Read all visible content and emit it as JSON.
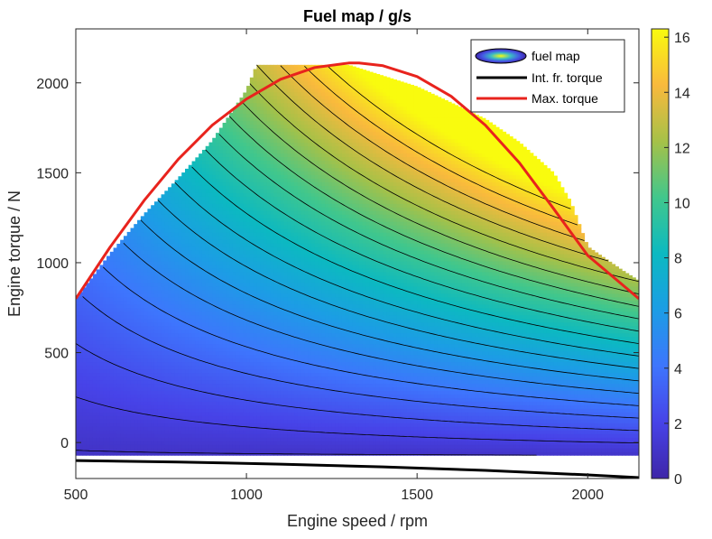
{
  "chart_data": {
    "type": "contour",
    "title": "Fuel map / g/s",
    "xlabel": "Engine speed / rpm",
    "ylabel": "Engine torque / N",
    "xlim": [
      500,
      2150
    ],
    "ylim": [
      -200,
      2300
    ],
    "x_ticks": [
      "500",
      "1000",
      "1500",
      "2000"
    ],
    "y_ticks": [
      "0",
      "500",
      "1000",
      "1500",
      "2000"
    ],
    "colorbar": {
      "range": [
        0,
        16.3
      ],
      "ticks": [
        "0",
        "2",
        "4",
        "6",
        "8",
        "10",
        "12",
        "14",
        "16"
      ],
      "colormap": "parula"
    },
    "legend_position": "top-right",
    "legend": [
      "fuel map",
      "Int. fr. torque",
      "Max. torque"
    ],
    "series": [
      {
        "name": "Max. torque",
        "color": "#e8231d",
        "x": [
          500,
          600,
          700,
          800,
          900,
          1000,
          1100,
          1200,
          1300,
          1330,
          1400,
          1500,
          1600,
          1700,
          1800,
          1900,
          2000,
          2100,
          2150
        ],
        "y": [
          800,
          1085,
          1345,
          1575,
          1765,
          1910,
          2020,
          2085,
          2110,
          2110,
          2095,
          2035,
          1925,
          1765,
          1555,
          1300,
          1040,
          880,
          800
        ]
      },
      {
        "name": "Int. fr. torque",
        "color": "#000000",
        "x": [
          500,
          800,
          1100,
          1400,
          1700,
          2000,
          2150
        ],
        "y": [
          -100,
          -108,
          -120,
          -135,
          -155,
          -180,
          -195
        ]
      }
    ],
    "map_boundary": {
      "speed": [
        500,
        600,
        700,
        800,
        900,
        1000,
        1030,
        1100,
        1200,
        1300,
        1400,
        1500,
        1600,
        1700,
        1800,
        1900,
        1950,
        2000,
        2100,
        2150
      ],
      "torque_max": [
        800,
        1050,
        1270,
        1470,
        1680,
        1960,
        2100,
        2100,
        2100,
        2100,
        2040,
        1980,
        1890,
        1800,
        1670,
        1500,
        1340,
        1090,
        960,
        900
      ],
      "torque_min": -70
    }
  }
}
